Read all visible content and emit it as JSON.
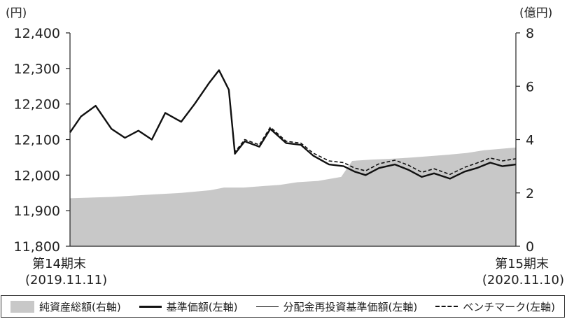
{
  "chart_data": {
    "type": "line",
    "title": "",
    "y_left": {
      "unit_label": "(円)",
      "range": [
        11800,
        12400
      ],
      "ticks": [
        11800,
        11900,
        12000,
        12100,
        12200,
        12300,
        12400
      ],
      "tick_labels": [
        "11,800",
        "11,900",
        "12,000",
        "12,100",
        "12,200",
        "12,300",
        "12,400"
      ]
    },
    "y_right": {
      "unit_label": "(億円)",
      "range": [
        0,
        8
      ],
      "ticks": [
        0,
        2,
        4,
        6,
        8
      ],
      "tick_labels": [
        "0",
        "2",
        "4",
        "6",
        "8"
      ]
    },
    "x_labels": {
      "start": {
        "period": "第14期末",
        "date": "(2019.11.11)"
      },
      "end": {
        "period": "第15期末",
        "date": "(2020.11.10)"
      }
    },
    "x_range": [
      "2019-11-11",
      "2020-11-10"
    ],
    "grid": false,
    "legend": {
      "position": "bottom",
      "items": [
        {
          "label": "純資産総額(右軸)",
          "style": "area"
        },
        {
          "label": "基準価額(左軸)",
          "style": "thick-line"
        },
        {
          "label": "分配金再投資基準価額(左軸)",
          "style": "thin-line"
        },
        {
          "label": "ベンチマーク(左軸)",
          "style": "dashed-line"
        }
      ]
    },
    "series": [
      {
        "name": "純資産総額(右軸)",
        "axis": "right",
        "kind": "area",
        "color": "#c8c8c8",
        "x": [
          "2019-11-11",
          "2019-12-15",
          "2020-01-20",
          "2020-02-10",
          "2020-03-05",
          "2020-03-16",
          "2020-04-01",
          "2020-04-15",
          "2020-05-01",
          "2020-05-15",
          "2020-06-01",
          "2020-06-20",
          "2020-06-29",
          "2020-07-15",
          "2020-08-01",
          "2020-08-15",
          "2020-09-01",
          "2020-09-15",
          "2020-10-01",
          "2020-10-15",
          "2020-11-10"
        ],
        "values": [
          1.8,
          1.85,
          1.95,
          2.0,
          2.1,
          2.2,
          2.2,
          2.25,
          2.3,
          2.4,
          2.45,
          2.6,
          3.2,
          3.25,
          3.28,
          3.32,
          3.38,
          3.43,
          3.5,
          3.6,
          3.7
        ]
      },
      {
        "name": "基準価額(左軸)",
        "axis": "left",
        "kind": "thick-line",
        "color": "#111111",
        "x": [
          "2019-11-11",
          "2019-11-20",
          "2019-12-02",
          "2019-12-15",
          "2019-12-26",
          "2020-01-06",
          "2020-01-17",
          "2020-01-28",
          "2020-02-10",
          "2020-02-21",
          "2020-03-04",
          "2020-03-12",
          "2020-03-20",
          "2020-03-25",
          "2020-04-02",
          "2020-04-14",
          "2020-04-23",
          "2020-05-06",
          "2020-05-18",
          "2020-05-28",
          "2020-06-10",
          "2020-06-22",
          "2020-07-01",
          "2020-07-10",
          "2020-07-21",
          "2020-08-03",
          "2020-08-14",
          "2020-08-25",
          "2020-09-04",
          "2020-09-17",
          "2020-09-29",
          "2020-10-09",
          "2020-10-20",
          "2020-10-30",
          "2020-11-10"
        ],
        "values": [
          12120,
          12165,
          12195,
          12130,
          12105,
          12125,
          12100,
          12175,
          12150,
          12200,
          12260,
          12295,
          12240,
          12060,
          12095,
          12080,
          12130,
          12090,
          12085,
          12055,
          12030,
          12025,
          12010,
          12000,
          12020,
          12030,
          12015,
          11995,
          12005,
          11990,
          12010,
          12020,
          12035,
          12025,
          12030
        ]
      },
      {
        "name": "分配金再投資基準価額(左軸)",
        "axis": "left",
        "kind": "thin-line",
        "color": "#111111",
        "x": [
          "2019-11-11",
          "2019-11-20",
          "2019-12-02",
          "2019-12-15",
          "2019-12-26",
          "2020-01-06",
          "2020-01-17",
          "2020-01-28",
          "2020-02-10",
          "2020-02-21",
          "2020-03-04",
          "2020-03-12",
          "2020-03-20",
          "2020-03-25",
          "2020-04-02",
          "2020-04-14",
          "2020-04-23",
          "2020-05-06",
          "2020-05-18",
          "2020-05-28",
          "2020-06-10",
          "2020-06-22",
          "2020-07-01",
          "2020-07-10",
          "2020-07-21",
          "2020-08-03",
          "2020-08-14",
          "2020-08-25",
          "2020-09-04",
          "2020-09-17",
          "2020-09-29",
          "2020-10-09",
          "2020-10-20",
          "2020-10-30",
          "2020-11-10"
        ],
        "values": [
          12120,
          12165,
          12195,
          12130,
          12105,
          12125,
          12100,
          12175,
          12150,
          12200,
          12260,
          12295,
          12240,
          12060,
          12095,
          12080,
          12130,
          12090,
          12085,
          12055,
          12030,
          12025,
          12010,
          12000,
          12020,
          12030,
          12015,
          11995,
          12005,
          11990,
          12010,
          12020,
          12035,
          12025,
          12030
        ]
      },
      {
        "name": "ベンチマーク(左軸)",
        "axis": "left",
        "kind": "dashed-line",
        "color": "#111111",
        "x": [
          "2019-11-11",
          "2019-11-20",
          "2019-12-02",
          "2019-12-15",
          "2019-12-26",
          "2020-01-06",
          "2020-01-17",
          "2020-01-28",
          "2020-02-10",
          "2020-02-21",
          "2020-03-04",
          "2020-03-12",
          "2020-03-20",
          "2020-03-25",
          "2020-04-02",
          "2020-04-14",
          "2020-04-23",
          "2020-05-06",
          "2020-05-18",
          "2020-05-28",
          "2020-06-10",
          "2020-06-22",
          "2020-07-01",
          "2020-07-10",
          "2020-07-21",
          "2020-08-03",
          "2020-08-14",
          "2020-08-25",
          "2020-09-04",
          "2020-09-17",
          "2020-09-29",
          "2020-10-09",
          "2020-10-20",
          "2020-10-30",
          "2020-11-10"
        ],
        "values": [
          12120,
          12165,
          12195,
          12130,
          12105,
          12125,
          12100,
          12175,
          12150,
          12200,
          12260,
          12295,
          12240,
          12065,
          12100,
          12085,
          12135,
          12095,
          12090,
          12062,
          12040,
          12035,
          12020,
          12012,
          12032,
          12042,
          12028,
          12008,
          12018,
          12002,
          12022,
          12034,
          12048,
          12040,
          12046
        ]
      }
    ]
  }
}
